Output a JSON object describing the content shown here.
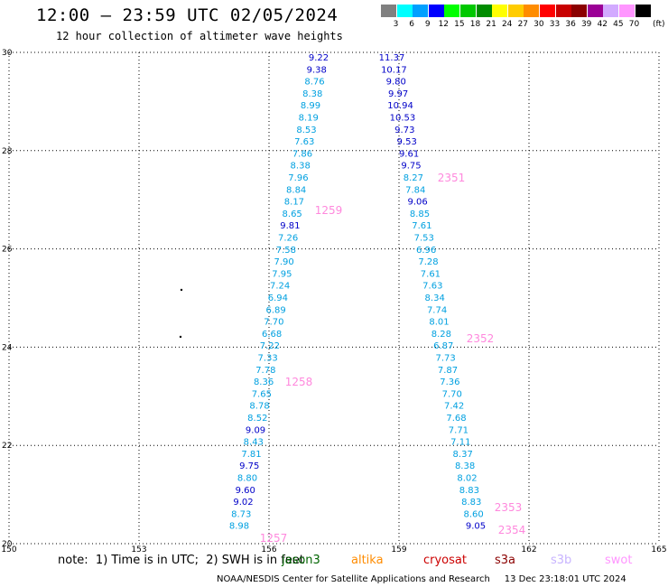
{
  "header": {
    "title": "12:00 – 23:59 UTC 02/05/2024",
    "subtitle": "12 hour collection of altimeter wave heights"
  },
  "legend": {
    "unit": "(ft)",
    "bins": [
      {
        "label": "3",
        "color": "#808080"
      },
      {
        "label": "6",
        "color": "#00ffff"
      },
      {
        "label": "9",
        "color": "#00a0ff"
      },
      {
        "label": "12",
        "color": "#0000ff"
      },
      {
        "label": "15",
        "color": "#00ff00"
      },
      {
        "label": "18",
        "color": "#00c800"
      },
      {
        "label": "21",
        "color": "#008c00"
      },
      {
        "label": "24",
        "color": "#ffff00"
      },
      {
        "label": "27",
        "color": "#ffcc00"
      },
      {
        "label": "30",
        "color": "#ff8c00"
      },
      {
        "label": "33",
        "color": "#ff0000"
      },
      {
        "label": "36",
        "color": "#c80000"
      },
      {
        "label": "39",
        "color": "#8b0000"
      },
      {
        "label": "42",
        "color": "#9b0096"
      },
      {
        "label": "45",
        "color": "#d2aaff"
      },
      {
        "label": "70",
        "color": "#ff96ff"
      },
      {
        "label": "",
        "color": "#000000"
      }
    ]
  },
  "map": {
    "lon_ticks": [
      "150",
      "153",
      "156",
      "159",
      "162",
      "165"
    ],
    "lat_ticks": [
      "30",
      "28",
      "26",
      "24",
      "22",
      "20"
    ],
    "lon_range": [
      150,
      165
    ],
    "lat_range": [
      20,
      30
    ]
  },
  "passes": [
    {
      "id": "1259",
      "color": "#ff88dd"
    },
    {
      "id": "1258",
      "color": "#ff88dd"
    },
    {
      "id": "1257",
      "color": "#ff88dd"
    },
    {
      "id": "2351",
      "color": "#ff88dd"
    },
    {
      "id": "2352",
      "color": "#ff88dd"
    },
    {
      "id": "2353",
      "color": "#ff88dd"
    },
    {
      "id": "2354",
      "color": "#ff88dd"
    }
  ],
  "wave_heights": [
    {
      "track": "west",
      "values": [
        "9.22",
        "9.38",
        "8.76",
        "8.38",
        "8.99",
        "8.19",
        "8.53",
        "7.63",
        "7.86",
        "8.38",
        "7.96",
        "8.84",
        "8.17",
        "8.65",
        "9.81",
        "7.26",
        "7.58",
        "7.90",
        "7.95",
        "7.24",
        "6.94",
        "6.89",
        "7.70",
        "6.68",
        "7.22",
        "7.33",
        "7.78",
        "8.36",
        "7.65",
        "8.78",
        "8.52",
        "9.09",
        "8.43",
        "7.81",
        "9.75",
        "8.80",
        "9.60",
        "9.02",
        "8.73",
        "8.98"
      ]
    },
    {
      "track": "east",
      "values": [
        "11.37",
        "10.17",
        "9.80",
        "9.97",
        "10.94",
        "10.53",
        "9.73",
        "9.53",
        "9.61",
        "9.75",
        "8.27",
        "7.84",
        "9.06",
        "8.85",
        "7.61",
        "7.53",
        "6.96",
        "7.28",
        "7.61",
        "7.63",
        "8.34",
        "7.74",
        "8.01",
        "8.28",
        "6.87",
        "7.73",
        "7.87",
        "7.36",
        "7.70",
        "7.42",
        "7.68",
        "7.71",
        "7.11",
        "8.37",
        "8.38",
        "8.02",
        "8.83",
        "8.83",
        "8.60",
        "9.05"
      ]
    }
  ],
  "footer": {
    "note": "note:  1) Time is in UTC;  2) SWH is in feet",
    "satellites": [
      {
        "name": "jason3",
        "color": "#006400"
      },
      {
        "name": "altika",
        "color": "#ff8c00"
      },
      {
        "name": "cryosat",
        "color": "#cc0000"
      },
      {
        "name": "s3a",
        "color": "#8b0000"
      },
      {
        "name": "s3b",
        "color": "#c8b4ff"
      },
      {
        "name": "swot",
        "color": "#ff96ff"
      }
    ],
    "credit": "NOAA/NESDIS Center for Satellite Applications and Research     13 Dec 23:18:01 UTC 2024"
  },
  "colors": {
    "cyan_text": "#00a0e0",
    "blue_text": "#0000c8",
    "grid": "#000000"
  }
}
